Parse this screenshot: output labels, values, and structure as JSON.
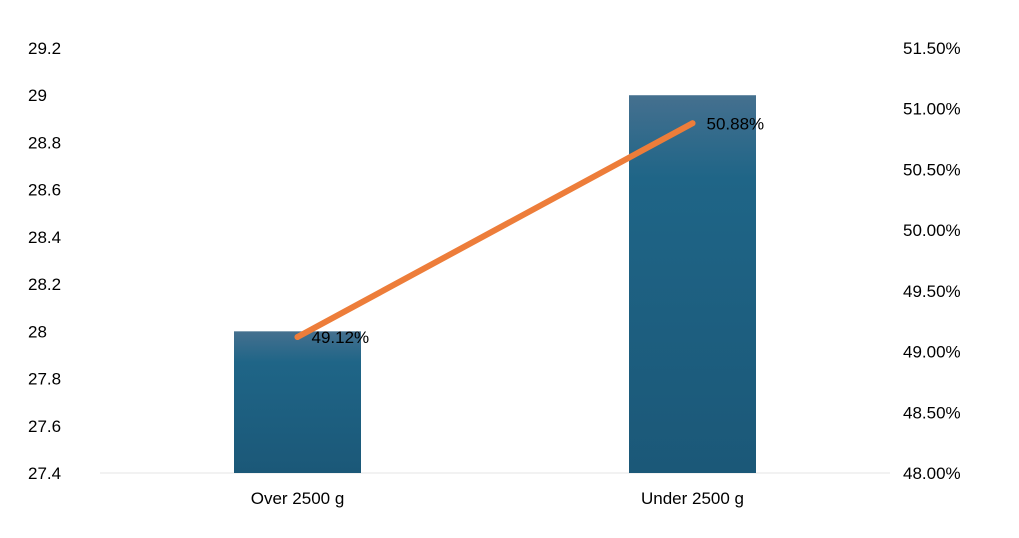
{
  "chart_data": {
    "type": "bar",
    "categories": [
      "Over 2500 g",
      "Under 2500 g"
    ],
    "bar_series": {
      "values": [
        28,
        29
      ],
      "color": "#1d5f82"
    },
    "line_series": {
      "values": [
        49.12,
        50.88
      ],
      "labels": [
        "49.12%",
        "50.88%"
      ],
      "color": "#ed7d3a"
    },
    "y_left": {
      "min": 27.4,
      "max": 29.2,
      "ticks": [
        29.2,
        29,
        28.8,
        28.6,
        28.4,
        28.2,
        28,
        27.8,
        27.6,
        27.4
      ]
    },
    "y_right": {
      "min": 48.0,
      "max": 51.5,
      "ticks": [
        "51.50%",
        "51.00%",
        "50.50%",
        "50.00%",
        "49.50%",
        "49.00%",
        "48.50%",
        "48.00%"
      ]
    },
    "grid": false
  }
}
